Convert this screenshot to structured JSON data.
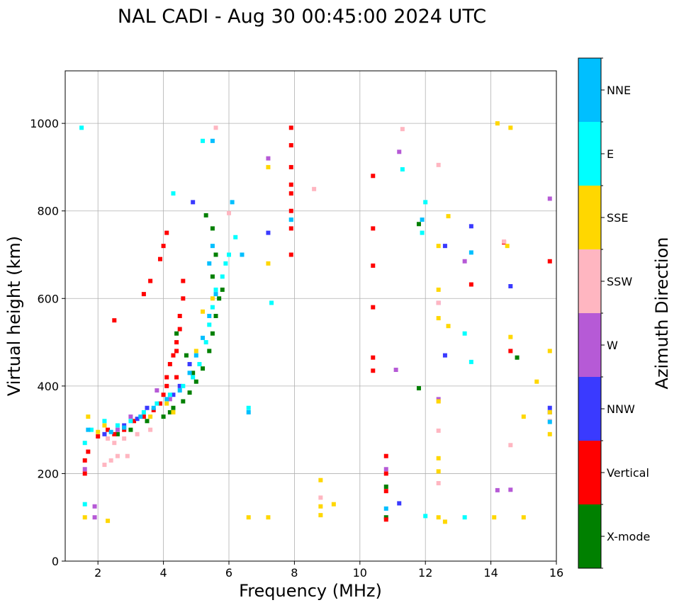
{
  "chart_data": {
    "type": "scatter",
    "title": "NAL CADI - Aug 30 00:45:00 2024 UTC",
    "xlabel": "Frequency (MHz)",
    "ylabel": "Virtual height (km)",
    "xlim": [
      1,
      16
    ],
    "ylim": [
      0,
      1120
    ],
    "xticks": [
      "2",
      "4",
      "6",
      "8",
      "10",
      "12",
      "14",
      "16"
    ],
    "xtick_values": [
      2,
      4,
      6,
      8,
      10,
      12,
      14,
      16
    ],
    "yticks": [
      "0",
      "200",
      "400",
      "600",
      "800",
      "1000"
    ],
    "ytick_values": [
      0,
      200,
      400,
      600,
      800,
      1000
    ],
    "grid": true,
    "colorbar": {
      "label": "Azimuth Direction",
      "categories": [
        {
          "name": "X-mode",
          "color": "#008000"
        },
        {
          "name": "Vertical",
          "color": "#ff0000"
        },
        {
          "name": "NNW",
          "color": "#3a3aff"
        },
        {
          "name": "W",
          "color": "#b65ad6"
        },
        {
          "name": "SSW",
          "color": "#ffb6c1"
        },
        {
          "name": "SSE",
          "color": "#ffd700"
        },
        {
          "name": "E",
          "color": "#00ffff"
        },
        {
          "name": "NNE",
          "color": "#00bfff"
        }
      ]
    },
    "series": [
      {
        "name": "X-mode",
        "points": [
          [
            2.6,
            290
          ],
          [
            3.0,
            300
          ],
          [
            3.5,
            320
          ],
          [
            4.0,
            330
          ],
          [
            4.3,
            350
          ],
          [
            4.6,
            365
          ],
          [
            4.8,
            385
          ],
          [
            5.0,
            410
          ],
          [
            5.2,
            440
          ],
          [
            5.4,
            480
          ],
          [
            5.5,
            520
          ],
          [
            5.6,
            560
          ],
          [
            5.7,
            600
          ],
          [
            5.5,
            650
          ],
          [
            5.6,
            700
          ],
          [
            5.5,
            760
          ],
          [
            5.3,
            790
          ],
          [
            4.4,
            520
          ],
          [
            4.7,
            470
          ],
          [
            4.9,
            430
          ],
          [
            11.8,
            770
          ],
          [
            11.8,
            395
          ],
          [
            10.8,
            100
          ],
          [
            10.8,
            170
          ],
          [
            14.8,
            465
          ],
          [
            5.8,
            620
          ],
          [
            4.2,
            340
          ]
        ]
      },
      {
        "name": "Vertical",
        "points": [
          [
            1.6,
            200
          ],
          [
            1.6,
            230
          ],
          [
            1.7,
            250
          ],
          [
            2.0,
            285
          ],
          [
            2.3,
            300
          ],
          [
            2.5,
            290
          ],
          [
            2.8,
            300
          ],
          [
            3.1,
            320
          ],
          [
            3.4,
            330
          ],
          [
            3.7,
            345
          ],
          [
            3.9,
            360
          ],
          [
            4.0,
            380
          ],
          [
            4.1,
            400
          ],
          [
            4.1,
            420
          ],
          [
            4.2,
            450
          ],
          [
            4.3,
            470
          ],
          [
            4.4,
            500
          ],
          [
            4.5,
            530
          ],
          [
            4.5,
            560
          ],
          [
            4.6,
            600
          ],
          [
            4.6,
            640
          ],
          [
            4.4,
            480
          ],
          [
            4.4,
            420
          ],
          [
            3.9,
            690
          ],
          [
            4.0,
            720
          ],
          [
            4.1,
            750
          ],
          [
            3.6,
            640
          ],
          [
            3.4,
            610
          ],
          [
            2.5,
            550
          ],
          [
            7.9,
            990
          ],
          [
            7.9,
            950
          ],
          [
            7.9,
            900
          ],
          [
            7.9,
            860
          ],
          [
            7.9,
            840
          ],
          [
            7.9,
            800
          ],
          [
            7.9,
            760
          ],
          [
            7.9,
            700
          ],
          [
            10.4,
            880
          ],
          [
            10.4,
            760
          ],
          [
            10.4,
            675
          ],
          [
            10.4,
            580
          ],
          [
            10.4,
            465
          ],
          [
            10.4,
            435
          ],
          [
            10.8,
            240
          ],
          [
            10.8,
            200
          ],
          [
            10.8,
            160
          ],
          [
            10.8,
            95
          ],
          [
            13.4,
            632
          ],
          [
            14.4,
            728
          ],
          [
            14.6,
            480
          ],
          [
            15.8,
            685
          ]
        ]
      },
      {
        "name": "NNW",
        "points": [
          [
            2.2,
            290
          ],
          [
            2.8,
            310
          ],
          [
            3.2,
            325
          ],
          [
            3.5,
            350
          ],
          [
            4.3,
            380
          ],
          [
            4.5,
            400
          ],
          [
            4.8,
            450
          ],
          [
            7.2,
            750
          ],
          [
            12.6,
            720
          ],
          [
            12.6,
            470
          ],
          [
            13.4,
            765
          ],
          [
            14.6,
            628
          ],
          [
            15.8,
            350
          ],
          [
            15.8,
            340
          ],
          [
            11.2,
            132
          ],
          [
            4.9,
            820
          ]
        ]
      },
      {
        "name": "W",
        "points": [
          [
            1.6,
            210
          ],
          [
            1.9,
            100
          ],
          [
            1.9,
            125
          ],
          [
            2.6,
            300
          ],
          [
            3.0,
            330
          ],
          [
            3.8,
            390
          ],
          [
            4.2,
            370
          ],
          [
            7.2,
            920
          ],
          [
            11.2,
            935
          ],
          [
            11.1,
            437
          ],
          [
            13.2,
            685
          ],
          [
            12.4,
            590
          ],
          [
            12.4,
            370
          ],
          [
            15.8,
            828
          ],
          [
            14.2,
            162
          ],
          [
            14.6,
            163
          ],
          [
            10.8,
            210
          ]
        ]
      },
      {
        "name": "SSW",
        "points": [
          [
            2.2,
            220
          ],
          [
            2.4,
            230
          ],
          [
            2.6,
            240
          ],
          [
            2.9,
            240
          ],
          [
            2.3,
            280
          ],
          [
            2.5,
            270
          ],
          [
            2.8,
            280
          ],
          [
            3.2,
            290
          ],
          [
            3.6,
            300
          ],
          [
            12.4,
            905
          ],
          [
            12.4,
            590
          ],
          [
            12.4,
            365
          ],
          [
            12.4,
            298
          ],
          [
            12.4,
            178
          ],
          [
            14.6,
            265
          ],
          [
            14.4,
            730
          ],
          [
            8.6,
            850
          ],
          [
            8.8,
            145
          ],
          [
            5.6,
            990
          ],
          [
            11.3,
            987
          ],
          [
            6.0,
            795
          ],
          [
            15.8,
            320
          ]
        ]
      },
      {
        "name": "SSE",
        "points": [
          [
            1.6,
            100
          ],
          [
            1.7,
            330
          ],
          [
            2.3,
            92
          ],
          [
            2.0,
            295
          ],
          [
            2.2,
            310
          ],
          [
            3.6,
            330
          ],
          [
            4.1,
            360
          ],
          [
            4.3,
            340
          ],
          [
            5.0,
            480
          ],
          [
            5.2,
            570
          ],
          [
            5.5,
            600
          ],
          [
            6.6,
            100
          ],
          [
            7.2,
            100
          ],
          [
            7.2,
            680
          ],
          [
            7.2,
            900
          ],
          [
            8.8,
            185
          ],
          [
            8.8,
            125
          ],
          [
            8.8,
            105
          ],
          [
            9.2,
            130
          ],
          [
            12.4,
            720
          ],
          [
            12.4,
            620
          ],
          [
            12.4,
            555
          ],
          [
            12.4,
            365
          ],
          [
            12.4,
            235
          ],
          [
            12.4,
            205
          ],
          [
            12.4,
            100
          ],
          [
            12.6,
            90
          ],
          [
            12.7,
            788
          ],
          [
            12.7,
            537
          ],
          [
            14.1,
            100
          ],
          [
            14.2,
            1000
          ],
          [
            14.6,
            990
          ],
          [
            14.6,
            512
          ],
          [
            14.5,
            720
          ],
          [
            15.0,
            100
          ],
          [
            15.0,
            330
          ],
          [
            15.4,
            410
          ],
          [
            15.8,
            480
          ],
          [
            15.8,
            290
          ],
          [
            15.8,
            340
          ]
        ]
      },
      {
        "name": "E",
        "points": [
          [
            1.5,
            990
          ],
          [
            1.6,
            130
          ],
          [
            1.6,
            270
          ],
          [
            1.8,
            300
          ],
          [
            2.2,
            320
          ],
          [
            2.6,
            310
          ],
          [
            3.0,
            320
          ],
          [
            3.4,
            340
          ],
          [
            3.8,
            360
          ],
          [
            4.2,
            380
          ],
          [
            4.6,
            400
          ],
          [
            4.9,
            420
          ],
          [
            5.1,
            450
          ],
          [
            5.3,
            500
          ],
          [
            5.4,
            540
          ],
          [
            5.5,
            580
          ],
          [
            5.6,
            620
          ],
          [
            5.8,
            650
          ],
          [
            5.9,
            680
          ],
          [
            6.0,
            700
          ],
          [
            6.2,
            740
          ],
          [
            6.6,
            350
          ],
          [
            7.3,
            590
          ],
          [
            7.9,
            780
          ],
          [
            11.3,
            895
          ],
          [
            11.9,
            750
          ],
          [
            12.0,
            820
          ],
          [
            12.0,
            103
          ],
          [
            13.2,
            520
          ],
          [
            13.4,
            455
          ],
          [
            13.2,
            100
          ],
          [
            4.3,
            840
          ],
          [
            5.2,
            960
          ]
        ]
      },
      {
        "name": "NNE",
        "points": [
          [
            1.7,
            300
          ],
          [
            2.4,
            295
          ],
          [
            2.8,
            305
          ],
          [
            3.3,
            330
          ],
          [
            3.7,
            350
          ],
          [
            4.1,
            370
          ],
          [
            4.5,
            390
          ],
          [
            4.8,
            430
          ],
          [
            5.0,
            470
          ],
          [
            5.2,
            510
          ],
          [
            5.4,
            560
          ],
          [
            5.6,
            610
          ],
          [
            5.4,
            680
          ],
          [
            5.5,
            720
          ],
          [
            6.1,
            820
          ],
          [
            6.4,
            700
          ],
          [
            6.6,
            340
          ],
          [
            7.9,
            780
          ],
          [
            10.8,
            120
          ],
          [
            11.9,
            780
          ],
          [
            13.4,
            705
          ],
          [
            15.8,
            318
          ],
          [
            5.5,
            960
          ]
        ]
      }
    ]
  }
}
